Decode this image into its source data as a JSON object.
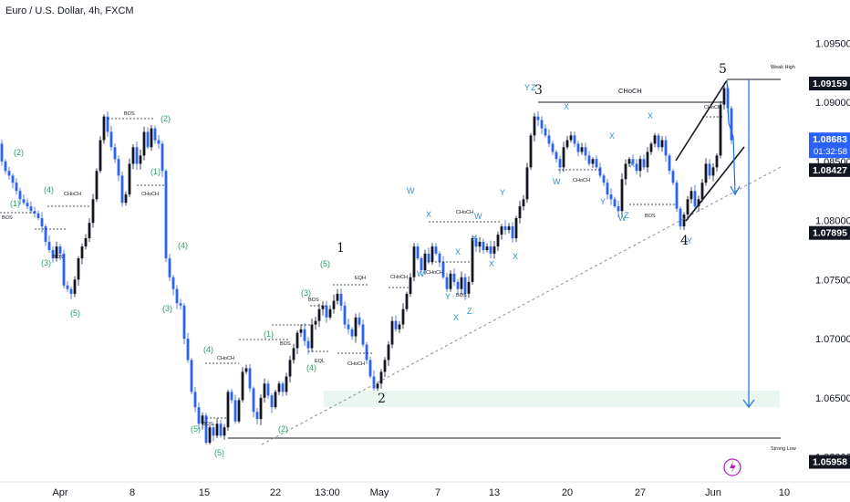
{
  "header": {
    "title": "Euro / U.S. Dollar, 4h, FXCM"
  },
  "colors": {
    "up": "#131722",
    "down": "#2962ff",
    "accent": "#1e6fd9",
    "green": "#2e9e6a",
    "blue_label": "#2f8fd0"
  },
  "chart_data": {
    "type": "candlestick",
    "title": "Euro / U.S. Dollar, 4h, FXCM",
    "x_ticks": [
      "Apr",
      "8",
      "15",
      "22",
      "13:00",
      "May",
      "7",
      "13",
      "20",
      "27",
      "Jun",
      "10"
    ],
    "y_ticks": [
      "1.09500",
      "1.09000",
      "1.08500",
      "1.08000",
      "1.07500",
      "1.07000",
      "1.06500",
      "1.06000"
    ],
    "ylim": [
      1.0585,
      1.0975
    ],
    "price_tags": [
      {
        "name": "weak-high",
        "value": "1.09159",
        "style": "dark"
      },
      {
        "name": "current-price",
        "value": "1.08683",
        "sub": "01:32:58",
        "style": "blue"
      },
      {
        "name": "mid-level",
        "value": "1.08427",
        "style": "dark"
      },
      {
        "name": "wave-4-low",
        "value": "1.07895",
        "style": "dark"
      },
      {
        "name": "strong-low",
        "value": "1.05958",
        "style": "dark"
      }
    ],
    "level_labels": {
      "weak_high": "Weak High",
      "strong_low": "Strong Low"
    },
    "wave_labels": [
      "1",
      "2",
      "3",
      "4",
      "5"
    ],
    "green_labels": [
      "(1)",
      "(2)",
      "(3)",
      "(4)",
      "(5)"
    ],
    "blue_labels": [
      "W",
      "X",
      "Y",
      "Z"
    ],
    "structure_labels": {
      "bos": "BOS",
      "choch": "CHoCH",
      "eqh": "EQH",
      "eql": "EQL"
    },
    "choch_main": "CHoCH",
    "path": [
      [
        0,
        1.0865
      ],
      [
        4,
        1.085
      ],
      [
        8,
        1.0842
      ],
      [
        12,
        1.0838
      ],
      [
        16,
        1.0832
      ],
      [
        20,
        1.0825
      ],
      [
        24,
        1.0818
      ],
      [
        28,
        1.0815
      ],
      [
        32,
        1.0812
      ],
      [
        36,
        1.0808
      ],
      [
        40,
        1.0806
      ],
      [
        44,
        1.0802
      ],
      [
        48,
        1.0795
      ],
      [
        52,
        1.0782
      ],
      [
        56,
        1.0775
      ],
      [
        60,
        1.0768
      ],
      [
        64,
        1.0778
      ],
      [
        68,
        1.0772
      ],
      [
        72,
        1.0745
      ],
      [
        76,
        1.0742
      ],
      [
        80,
        1.0738
      ],
      [
        84,
        1.075
      ],
      [
        88,
        1.0768
      ],
      [
        92,
        1.0778
      ],
      [
        96,
        1.0785
      ],
      [
        100,
        1.0798
      ],
      [
        104,
        1.0818
      ],
      [
        108,
        1.0842
      ],
      [
        112,
        1.0868
      ],
      [
        116,
        1.0888
      ],
      [
        120,
        1.0875
      ],
      [
        124,
        1.0862
      ],
      [
        128,
        1.0852
      ],
      [
        132,
        1.0838
      ],
      [
        136,
        1.0815
      ],
      [
        140,
        1.0822
      ],
      [
        144,
        1.0848
      ],
      [
        148,
        1.0862
      ],
      [
        152,
        1.0848
      ],
      [
        156,
        1.0855
      ],
      [
        160,
        1.0875
      ],
      [
        164,
        1.0862
      ],
      [
        168,
        1.0878
      ],
      [
        172,
        1.0868
      ],
      [
        176,
        1.0865
      ],
      [
        180,
        1.0842
      ],
      [
        184,
        1.0768
      ],
      [
        188,
        1.0752
      ],
      [
        192,
        1.0742
      ],
      [
        196,
        1.073
      ],
      [
        200,
        1.0728
      ],
      [
        204,
        1.07
      ],
      [
        208,
        1.0682
      ],
      [
        212,
        1.0655
      ],
      [
        216,
        1.0642
      ],
      [
        220,
        1.0628
      ],
      [
        224,
        1.0635
      ],
      [
        228,
        1.0612
      ],
      [
        232,
        1.0625
      ],
      [
        236,
        1.0618
      ],
      [
        240,
        1.0628
      ],
      [
        244,
        1.0618
      ],
      [
        248,
        1.0625
      ],
      [
        252,
        1.0655
      ],
      [
        256,
        1.0648
      ],
      [
        260,
        1.063
      ],
      [
        264,
        1.0648
      ],
      [
        268,
        1.0672
      ],
      [
        272,
        1.0675
      ],
      [
        276,
        1.0658
      ],
      [
        280,
        1.0638
      ],
      [
        284,
        1.0632
      ],
      [
        288,
        1.065
      ],
      [
        292,
        1.0662
      ],
      [
        296,
        1.0652
      ],
      [
        300,
        1.0642
      ],
      [
        304,
        1.0655
      ],
      [
        308,
        1.0662
      ],
      [
        312,
        1.0655
      ],
      [
        316,
        1.0668
      ],
      [
        320,
        1.0682
      ],
      [
        324,
        1.0692
      ],
      [
        328,
        1.0705
      ],
      [
        332,
        1.0708
      ],
      [
        336,
        1.0698
      ],
      [
        340,
        1.0692
      ],
      [
        344,
        1.0712
      ],
      [
        348,
        1.0715
      ],
      [
        352,
        1.0725
      ],
      [
        356,
        1.0728
      ],
      [
        360,
        1.0718
      ],
      [
        364,
        1.0725
      ],
      [
        368,
        1.0732
      ],
      [
        372,
        1.0738
      ],
      [
        376,
        1.0728
      ],
      [
        380,
        1.0712
      ],
      [
        384,
        1.0708
      ],
      [
        388,
        1.0702
      ],
      [
        392,
        1.0718
      ],
      [
        396,
        1.0712
      ],
      [
        400,
        1.0695
      ],
      [
        404,
        1.0682
      ],
      [
        408,
        1.0668
      ],
      [
        412,
        1.0658
      ],
      [
        416,
        1.0662
      ],
      [
        420,
        1.0672
      ],
      [
        424,
        1.0682
      ],
      [
        428,
        1.0695
      ],
      [
        432,
        1.0715
      ],
      [
        436,
        1.0708
      ],
      [
        440,
        1.0712
      ],
      [
        444,
        1.0725
      ],
      [
        448,
        1.0738
      ],
      [
        452,
        1.0752
      ],
      [
        456,
        1.0778
      ],
      [
        460,
        1.0768
      ],
      [
        464,
        1.0758
      ],
      [
        468,
        1.0772
      ],
      [
        472,
        1.0765
      ],
      [
        476,
        1.0778
      ],
      [
        480,
        1.0772
      ],
      [
        484,
        1.0765
      ],
      [
        488,
        1.0752
      ],
      [
        492,
        1.0742
      ],
      [
        496,
        1.0755
      ],
      [
        500,
        1.0748
      ],
      [
        504,
        1.0742
      ],
      [
        508,
        1.0752
      ],
      [
        512,
        1.0738
      ],
      [
        516,
        1.0748
      ],
      [
        520,
        1.0785
      ],
      [
        524,
        1.0778
      ],
      [
        528,
        1.0782
      ],
      [
        532,
        1.0775
      ],
      [
        536,
        1.0778
      ],
      [
        540,
        1.0772
      ],
      [
        544,
        1.0778
      ],
      [
        548,
        1.0788
      ],
      [
        552,
        1.0795
      ],
      [
        556,
        1.0792
      ],
      [
        560,
        1.0795
      ],
      [
        564,
        1.0785
      ],
      [
        568,
        1.0802
      ],
      [
        572,
        1.0812
      ],
      [
        576,
        1.0818
      ],
      [
        580,
        1.0845
      ],
      [
        584,
        1.0872
      ],
      [
        588,
        1.0888
      ],
      [
        592,
        1.0885
      ],
      [
        596,
        1.0878
      ],
      [
        600,
        1.0872
      ],
      [
        604,
        1.0865
      ],
      [
        608,
        1.0858
      ],
      [
        612,
        1.0852
      ],
      [
        616,
        1.0845
      ],
      [
        620,
        1.0862
      ],
      [
        624,
        1.0868
      ],
      [
        628,
        1.0872
      ],
      [
        632,
        1.0865
      ],
      [
        636,
        1.0858
      ],
      [
        640,
        1.0862
      ],
      [
        644,
        1.0855
      ],
      [
        648,
        1.0848
      ],
      [
        652,
        1.0852
      ],
      [
        656,
        1.0845
      ],
      [
        660,
        1.0838
      ],
      [
        664,
        1.0832
      ],
      [
        668,
        1.0822
      ],
      [
        672,
        1.0818
      ],
      [
        676,
        1.0812
      ],
      [
        680,
        1.0808
      ],
      [
        684,
        1.0835
      ],
      [
        688,
        1.0848
      ],
      [
        692,
        1.0852
      ],
      [
        696,
        1.0848
      ],
      [
        700,
        1.0842
      ],
      [
        704,
        1.0852
      ],
      [
        708,
        1.0845
      ],
      [
        712,
        1.0858
      ],
      [
        716,
        1.0865
      ],
      [
        720,
        1.0872
      ],
      [
        724,
        1.0862
      ],
      [
        728,
        1.0868
      ],
      [
        732,
        1.0855
      ],
      [
        736,
        1.0842
      ],
      [
        740,
        1.0832
      ],
      [
        744,
        1.081
      ],
      [
        748,
        1.0795
      ],
      [
        752,
        1.0805
      ],
      [
        756,
        1.0818
      ],
      [
        760,
        1.0825
      ],
      [
        764,
        1.0812
      ],
      [
        768,
        1.0818
      ],
      [
        772,
        1.0832
      ],
      [
        776,
        1.0848
      ],
      [
        780,
        1.0838
      ],
      [
        784,
        1.0845
      ],
      [
        788,
        1.0855
      ],
      [
        792,
        1.0898
      ],
      [
        796,
        1.0912
      ],
      [
        800,
        1.0895
      ],
      [
        804,
        1.0868
      ]
    ]
  }
}
